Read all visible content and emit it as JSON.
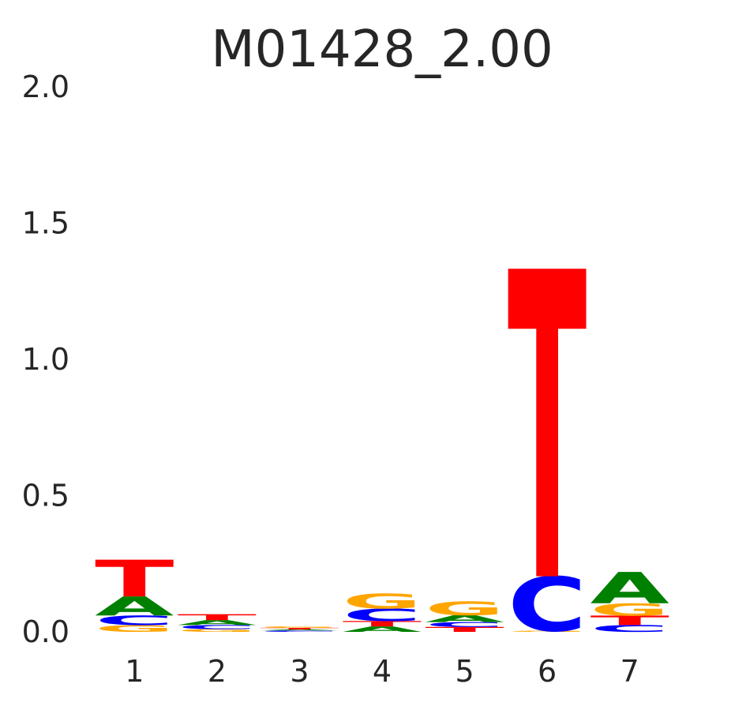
{
  "chart_data": {
    "type": "sequence_logo",
    "title": "M01428_2.00",
    "xlabel": "",
    "ylabel": "",
    "ylim": [
      0,
      2.0
    ],
    "yticks": [
      "0.0",
      "0.5",
      "1.0",
      "1.5",
      "2.0"
    ],
    "positions": [
      "1",
      "2",
      "3",
      "4",
      "5",
      "6",
      "7"
    ],
    "grid": false,
    "colors": {
      "A": "#008000",
      "C": "#0000ff",
      "G": "#ffa500",
      "T": "#ff0000"
    },
    "columns": [
      {
        "position": "1",
        "letters": [
          {
            "base": "G",
            "height": 0.025
          },
          {
            "base": "C",
            "height": 0.035
          },
          {
            "base": "A",
            "height": 0.07
          },
          {
            "base": "T",
            "height": 0.135
          }
        ]
      },
      {
        "position": "2",
        "letters": [
          {
            "base": "G",
            "height": 0.01
          },
          {
            "base": "C",
            "height": 0.015
          },
          {
            "base": "A",
            "height": 0.018
          },
          {
            "base": "T",
            "height": 0.022
          }
        ]
      },
      {
        "position": "3",
        "letters": [
          {
            "base": "C",
            "height": 0.005
          },
          {
            "base": "A",
            "height": 0.004
          },
          {
            "base": "T",
            "height": 0.006
          },
          {
            "base": "G",
            "height": 0.006
          }
        ]
      },
      {
        "position": "4",
        "letters": [
          {
            "base": "A",
            "height": 0.02
          },
          {
            "base": "T",
            "height": 0.02
          },
          {
            "base": "C",
            "height": 0.045
          },
          {
            "base": "G",
            "height": 0.055
          }
        ]
      },
      {
        "position": "5",
        "letters": [
          {
            "base": "T",
            "height": 0.018
          },
          {
            "base": "C",
            "height": 0.018
          },
          {
            "base": "A",
            "height": 0.025
          },
          {
            "base": "G",
            "height": 0.05
          }
        ]
      },
      {
        "position": "6",
        "letters": [
          {
            "base": "G",
            "height": 0.004
          },
          {
            "base": "C",
            "height": 0.2
          },
          {
            "base": "T",
            "height": 1.13
          }
        ]
      },
      {
        "position": "7",
        "letters": [
          {
            "base": "C",
            "height": 0.025
          },
          {
            "base": "T",
            "height": 0.035
          },
          {
            "base": "G",
            "height": 0.045
          },
          {
            "base": "A",
            "height": 0.115
          }
        ]
      }
    ]
  }
}
